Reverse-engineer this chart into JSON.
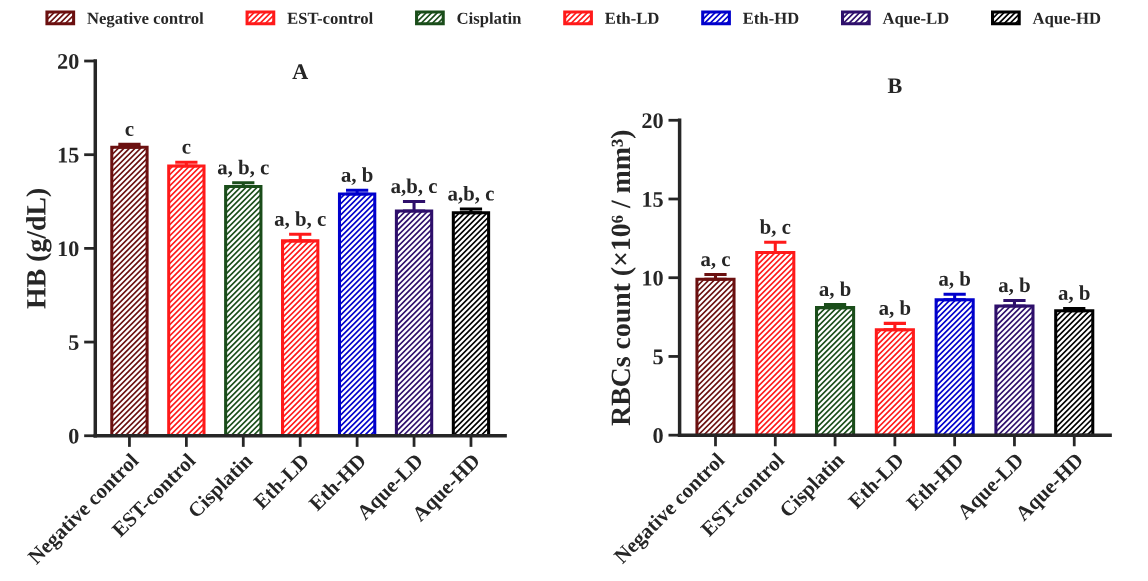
{
  "chart_data": [
    {
      "type": "bar",
      "title": "A",
      "ylabel": "HB (g/dL)",
      "categories": [
        "Negative control",
        "EST-control",
        "Cisplatin",
        "Eth-LD",
        "Eth-HD",
        "Aque-LD",
        "Aque-HD"
      ],
      "series": [
        {
          "name": "Negative control",
          "color": "#6b1010",
          "values": [
            15.4,
            null,
            null,
            null,
            null,
            null,
            null
          ],
          "errors": [
            0.15,
            null,
            null,
            null,
            null,
            null,
            null
          ]
        },
        {
          "name": "EST-control",
          "color": "#ff1a1a",
          "values": [
            null,
            14.4,
            null,
            null,
            null,
            null,
            null
          ],
          "errors": [
            null,
            0.2,
            null,
            null,
            null,
            null,
            null
          ]
        },
        {
          "name": "Cisplatin",
          "color": "#1a4d1a",
          "values": [
            null,
            null,
            13.3,
            null,
            null,
            null,
            null
          ],
          "errors": [
            null,
            null,
            0.2,
            null,
            null,
            null,
            null
          ]
        },
        {
          "name": "Eth-LD",
          "color": "#ff1a1a",
          "values": [
            null,
            null,
            null,
            10.4,
            null,
            null,
            null
          ],
          "errors": [
            null,
            null,
            null,
            0.35,
            null,
            null,
            null
          ]
        },
        {
          "name": "Eth-HD",
          "color": "#0000cc",
          "values": [
            null,
            null,
            null,
            null,
            12.9,
            null,
            null
          ],
          "errors": [
            null,
            null,
            null,
            null,
            0.2,
            null,
            null
          ]
        },
        {
          "name": "Aque-LD",
          "color": "#2e0f6b",
          "values": [
            null,
            null,
            null,
            null,
            null,
            12.0,
            null
          ],
          "errors": [
            null,
            null,
            null,
            null,
            null,
            0.5,
            null
          ]
        },
        {
          "name": "Aque-HD",
          "color": "#000000",
          "values": [
            null,
            null,
            null,
            null,
            null,
            null,
            11.9
          ],
          "errors": [
            null,
            null,
            null,
            null,
            null,
            null,
            0.2
          ]
        }
      ],
      "ylim": [
        0,
        20
      ],
      "yticks": [
        0,
        5,
        10,
        15,
        20
      ],
      "grid": false,
      "legend": "top",
      "annotations": [
        {
          "text": "c",
          "x": "Negative control",
          "y": 15.55
        },
        {
          "text": "c",
          "x": "EST-control",
          "y": 14.6
        },
        {
          "text": "a, b, c",
          "x": "Cisplatin",
          "y": 13.5
        },
        {
          "text": "a, b, c",
          "x": "Eth-LD",
          "y": 10.75
        },
        {
          "text": "a, b",
          "x": "Eth-HD",
          "y": 13.1
        },
        {
          "text": "a,b, c",
          "x": "Aque-LD",
          "y": 12.5
        },
        {
          "text": "a,b, c",
          "x": "Aque-HD",
          "y": 12.1
        }
      ]
    },
    {
      "type": "bar",
      "title": "B",
      "ylabel": "RBCs count (×10⁶ / mm³)",
      "categories": [
        "Negative control",
        "EST-control",
        "Cisplatin",
        "Eth-LD",
        "Eth-HD",
        "Aque-LD",
        "Aque-HD"
      ],
      "series": [
        {
          "color": "#6b1010",
          "values": [
            9.9,
            null,
            null,
            null,
            null,
            null,
            null
          ],
          "errors": [
            0.3,
            null,
            null,
            null,
            null,
            null,
            null
          ]
        },
        {
          "color": "#ff1a1a",
          "values": [
            null,
            11.6,
            null,
            null,
            null,
            null,
            null
          ],
          "errors": [
            null,
            0.65,
            null,
            null,
            null,
            null,
            null
          ]
        },
        {
          "color": "#1a4d1a",
          "values": [
            null,
            null,
            8.1,
            null,
            null,
            null,
            null
          ],
          "errors": [
            null,
            null,
            0.2,
            null,
            null,
            null,
            null
          ]
        },
        {
          "color": "#ff1a1a",
          "values": [
            null,
            null,
            null,
            6.7,
            null,
            null,
            null
          ],
          "errors": [
            null,
            null,
            null,
            0.4,
            null,
            null,
            null
          ]
        },
        {
          "color": "#0000cc",
          "values": [
            null,
            null,
            null,
            null,
            8.6,
            null,
            null
          ],
          "errors": [
            null,
            null,
            null,
            null,
            0.35,
            null,
            null
          ]
        },
        {
          "color": "#2e0f6b",
          "values": [
            null,
            null,
            null,
            null,
            null,
            8.2,
            null
          ],
          "errors": [
            null,
            null,
            null,
            null,
            null,
            0.35,
            null
          ]
        },
        {
          "color": "#000000",
          "values": [
            null,
            null,
            null,
            null,
            null,
            null,
            7.9
          ],
          "errors": [
            null,
            null,
            null,
            null,
            null,
            null,
            0.15
          ]
        }
      ],
      "ylim": [
        0,
        20
      ],
      "yticks": [
        0,
        5,
        10,
        15,
        20
      ],
      "grid": false,
      "annotations": [
        {
          "text": "a, c",
          "x": "Negative control",
          "y": 10.2
        },
        {
          "text": "b, c",
          "x": "EST-control",
          "y": 12.25
        },
        {
          "text": "a, b",
          "x": "Cisplatin",
          "y": 8.3
        },
        {
          "text": "a, b",
          "x": "Eth-LD",
          "y": 7.1
        },
        {
          "text": "a, b",
          "x": "Eth-HD",
          "y": 8.95
        },
        {
          "text": "a, b",
          "x": "Aque-LD",
          "y": 8.55
        },
        {
          "text": "a, b",
          "x": "Aque-HD",
          "y": 8.05
        }
      ]
    }
  ]
}
